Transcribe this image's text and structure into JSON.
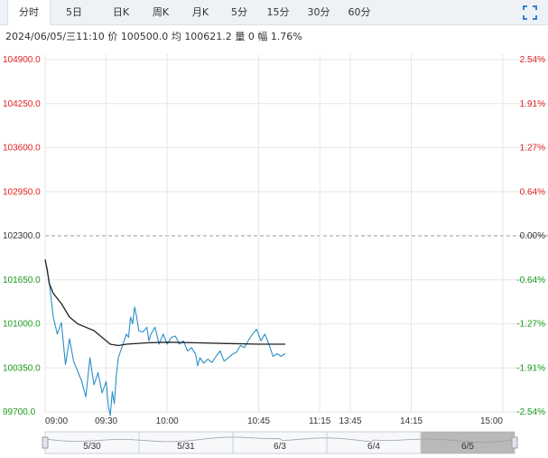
{
  "tabs": [
    {
      "label": "分时",
      "active": true
    },
    {
      "label": "5日"
    },
    {
      "label": "日K"
    },
    {
      "label": "周K"
    },
    {
      "label": "月K"
    },
    {
      "label": "5分"
    },
    {
      "label": "15分"
    },
    {
      "label": "30分"
    },
    {
      "label": "60分"
    }
  ],
  "info": {
    "datetime": "2024/06/05/三11:10",
    "price_label": "价",
    "price": "100500.0",
    "avg_label": "均",
    "avg": "100621.2",
    "volume_label": "量",
    "volume": "0",
    "change_label": "幅",
    "change": "1.76%"
  },
  "colors": {
    "up": "#e02020",
    "down": "#1a9a1a",
    "price_line": "#2a8fc7",
    "avg_line": "#222222",
    "grid": "#e6e6e6",
    "base_line": "#999999"
  },
  "chart_data": {
    "type": "line",
    "base_price": 102300,
    "y_ticks": [
      "104900.0",
      "104250.0",
      "103600.0",
      "102950.0",
      "102300.0",
      "101650.0",
      "101000.0",
      "100350.0",
      "99700.0"
    ],
    "pct_ticks": [
      "2.54%",
      "1.91%",
      "1.27%",
      "0.64%",
      "0.00%",
      "-0.64%",
      "-1.27%",
      "-1.91%",
      "-2.54%"
    ],
    "ylim": [
      99700,
      104900
    ],
    "x_ticks": [
      "09:00",
      "09:30",
      "10:00",
      "10:45",
      "11:15",
      "13:45",
      "14:15",
      "15:00"
    ],
    "series": [
      {
        "values": [
          [
            "09:00",
            101950
          ],
          [
            "09:02",
            101620
          ],
          [
            "09:04",
            101100
          ],
          [
            "09:06",
            100850
          ],
          [
            "09:08",
            101020
          ],
          [
            "09:10",
            100400
          ],
          [
            "09:12",
            100780
          ],
          [
            "09:14",
            100450
          ],
          [
            "09:16",
            100300
          ],
          [
            "09:18",
            100150
          ],
          [
            "09:20",
            99920
          ],
          [
            "09:22",
            100500
          ],
          [
            "09:24",
            100100
          ],
          [
            "09:26",
            100280
          ],
          [
            "09:28",
            99980
          ],
          [
            "09:30",
            100150
          ],
          [
            "09:31",
            99800
          ],
          [
            "09:32",
            99650
          ],
          [
            "09:33",
            100000
          ],
          [
            "09:34",
            99820
          ],
          [
            "09:35",
            100250
          ],
          [
            "09:36",
            100500
          ],
          [
            "09:38",
            100680
          ],
          [
            "09:40",
            100850
          ],
          [
            "09:41",
            100800
          ],
          [
            "09:42",
            101100
          ],
          [
            "09:43",
            101000
          ],
          [
            "09:44",
            101250
          ],
          [
            "09:45",
            101100
          ],
          [
            "09:46",
            100900
          ],
          [
            "09:48",
            100880
          ],
          [
            "09:50",
            100950
          ],
          [
            "09:51",
            100750
          ],
          [
            "09:52",
            100850
          ],
          [
            "09:54",
            100950
          ],
          [
            "09:56",
            100700
          ],
          [
            "09:58",
            100850
          ],
          [
            "10:00",
            100700
          ],
          [
            "10:02",
            100800
          ],
          [
            "10:04",
            100820
          ],
          [
            "10:06",
            100700
          ],
          [
            "10:08",
            100750
          ],
          [
            "10:10",
            100600
          ],
          [
            "10:12",
            100650
          ],
          [
            "10:14",
            100550
          ],
          [
            "10:15",
            100380
          ],
          [
            "10:16",
            100500
          ],
          [
            "10:18",
            100420
          ],
          [
            "10:20",
            100480
          ],
          [
            "10:22",
            100430
          ],
          [
            "10:24",
            100520
          ],
          [
            "10:26",
            100600
          ],
          [
            "10:28",
            100450
          ],
          [
            "10:30",
            100500
          ],
          [
            "10:32",
            100550
          ],
          [
            "10:34",
            100580
          ],
          [
            "10:36",
            100680
          ],
          [
            "10:38",
            100650
          ],
          [
            "10:40",
            100760
          ],
          [
            "10:42",
            100850
          ],
          [
            "10:44",
            100920
          ],
          [
            "10:46",
            100750
          ],
          [
            "10:48",
            100850
          ],
          [
            "10:50",
            100700
          ],
          [
            "10:52",
            100520
          ],
          [
            "10:54",
            100560
          ],
          [
            "10:56",
            100520
          ],
          [
            "10:58",
            100560
          ]
        ]
      },
      {
        "values": [
          [
            "09:00",
            101950
          ],
          [
            "09:01",
            101800
          ],
          [
            "09:02",
            101600
          ],
          [
            "09:04",
            101450
          ],
          [
            "09:08",
            101300
          ],
          [
            "09:12",
            101100
          ],
          [
            "09:16",
            101000
          ],
          [
            "09:20",
            100950
          ],
          [
            "09:24",
            100900
          ],
          [
            "09:28",
            100800
          ],
          [
            "09:32",
            100700
          ],
          [
            "09:36",
            100680
          ],
          [
            "09:40",
            100700
          ],
          [
            "09:50",
            100720
          ],
          [
            "10:00",
            100730
          ],
          [
            "10:15",
            100720
          ],
          [
            "10:30",
            100710
          ],
          [
            "10:45",
            100700
          ],
          [
            "10:58",
            100700
          ]
        ]
      }
    ]
  },
  "navigator": {
    "dates": [
      "5/30",
      "5/31",
      "6/3",
      "6/4",
      "6/5"
    ]
  }
}
